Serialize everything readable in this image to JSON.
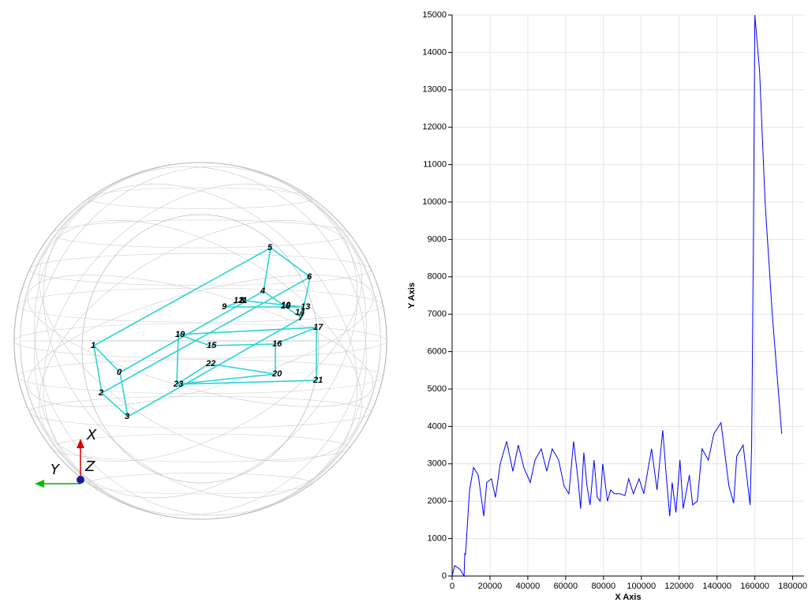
{
  "chart_data": {
    "type": "line",
    "x_label": "X Axis",
    "y_label": "Y Axis",
    "xlim": [
      0,
      186000
    ],
    "xticks": [
      0,
      20000,
      40000,
      60000,
      80000,
      100000,
      120000,
      140000,
      160000,
      180000
    ],
    "ylim": [
      0,
      15000
    ],
    "yticks": [
      0,
      1000,
      2000,
      3000,
      4000,
      5000,
      6000,
      7000,
      8000,
      9000,
      10000,
      11000,
      12000,
      13000,
      14000,
      15000
    ],
    "grid": true,
    "series": [
      {
        "color": "#0000ff",
        "x": [
          0,
          1300,
          4200,
          6300,
          6700,
          7100,
          9200,
          11300,
          13800,
          16700,
          18300,
          20800,
          22900,
          25400,
          28800,
          32100,
          35000,
          37900,
          41300,
          43800,
          47100,
          50000,
          52900,
          56300,
          59200,
          61700,
          64200,
          66700,
          67900,
          69600,
          71300,
          72900,
          75000,
          76700,
          78300,
          79600,
          82100,
          83800,
          85800,
          88800,
          91300,
          93300,
          95800,
          98800,
          101300,
          105400,
          108300,
          111300,
          113300,
          115000,
          116300,
          118300,
          120400,
          122100,
          125400,
          127100,
          129600,
          132100,
          135400,
          138300,
          142100,
          146300,
          148800,
          150400,
          153800,
          157500,
          158300,
          159200,
          160000,
          162500,
          165400,
          169200,
          174200
        ],
        "values": [
          0,
          280,
          180,
          0,
          600,
          580,
          2300,
          2900,
          2700,
          1600,
          2500,
          2600,
          2100,
          3000,
          3600,
          2800,
          3500,
          2900,
          2500,
          3100,
          3400,
          2800,
          3400,
          3100,
          2400,
          2200,
          3600,
          2500,
          1800,
          3300,
          2400,
          1900,
          3100,
          2100,
          2000,
          3000,
          2000,
          2300,
          2200,
          2200,
          2150,
          2600,
          2200,
          2600,
          2200,
          3400,
          2300,
          3900,
          2600,
          1600,
          2500,
          1700,
          3100,
          1800,
          2700,
          1900,
          2000,
          3400,
          3100,
          3800,
          4100,
          2400,
          1950,
          3200,
          3500,
          1900,
          3500,
          8800,
          15000,
          13500,
          10000,
          7000,
          3800
        ]
      }
    ]
  },
  "view3d": {
    "point_labels": [
      "0",
      "1",
      "2",
      "3",
      "4",
      "5",
      "6",
      "7",
      "8",
      "9",
      "10",
      "11",
      "12",
      "13",
      "14",
      "15",
      "16",
      "17",
      "18",
      "19",
      "20",
      "21",
      "22",
      "23"
    ],
    "axes_labels": [
      "X",
      "Y",
      "Z"
    ]
  }
}
